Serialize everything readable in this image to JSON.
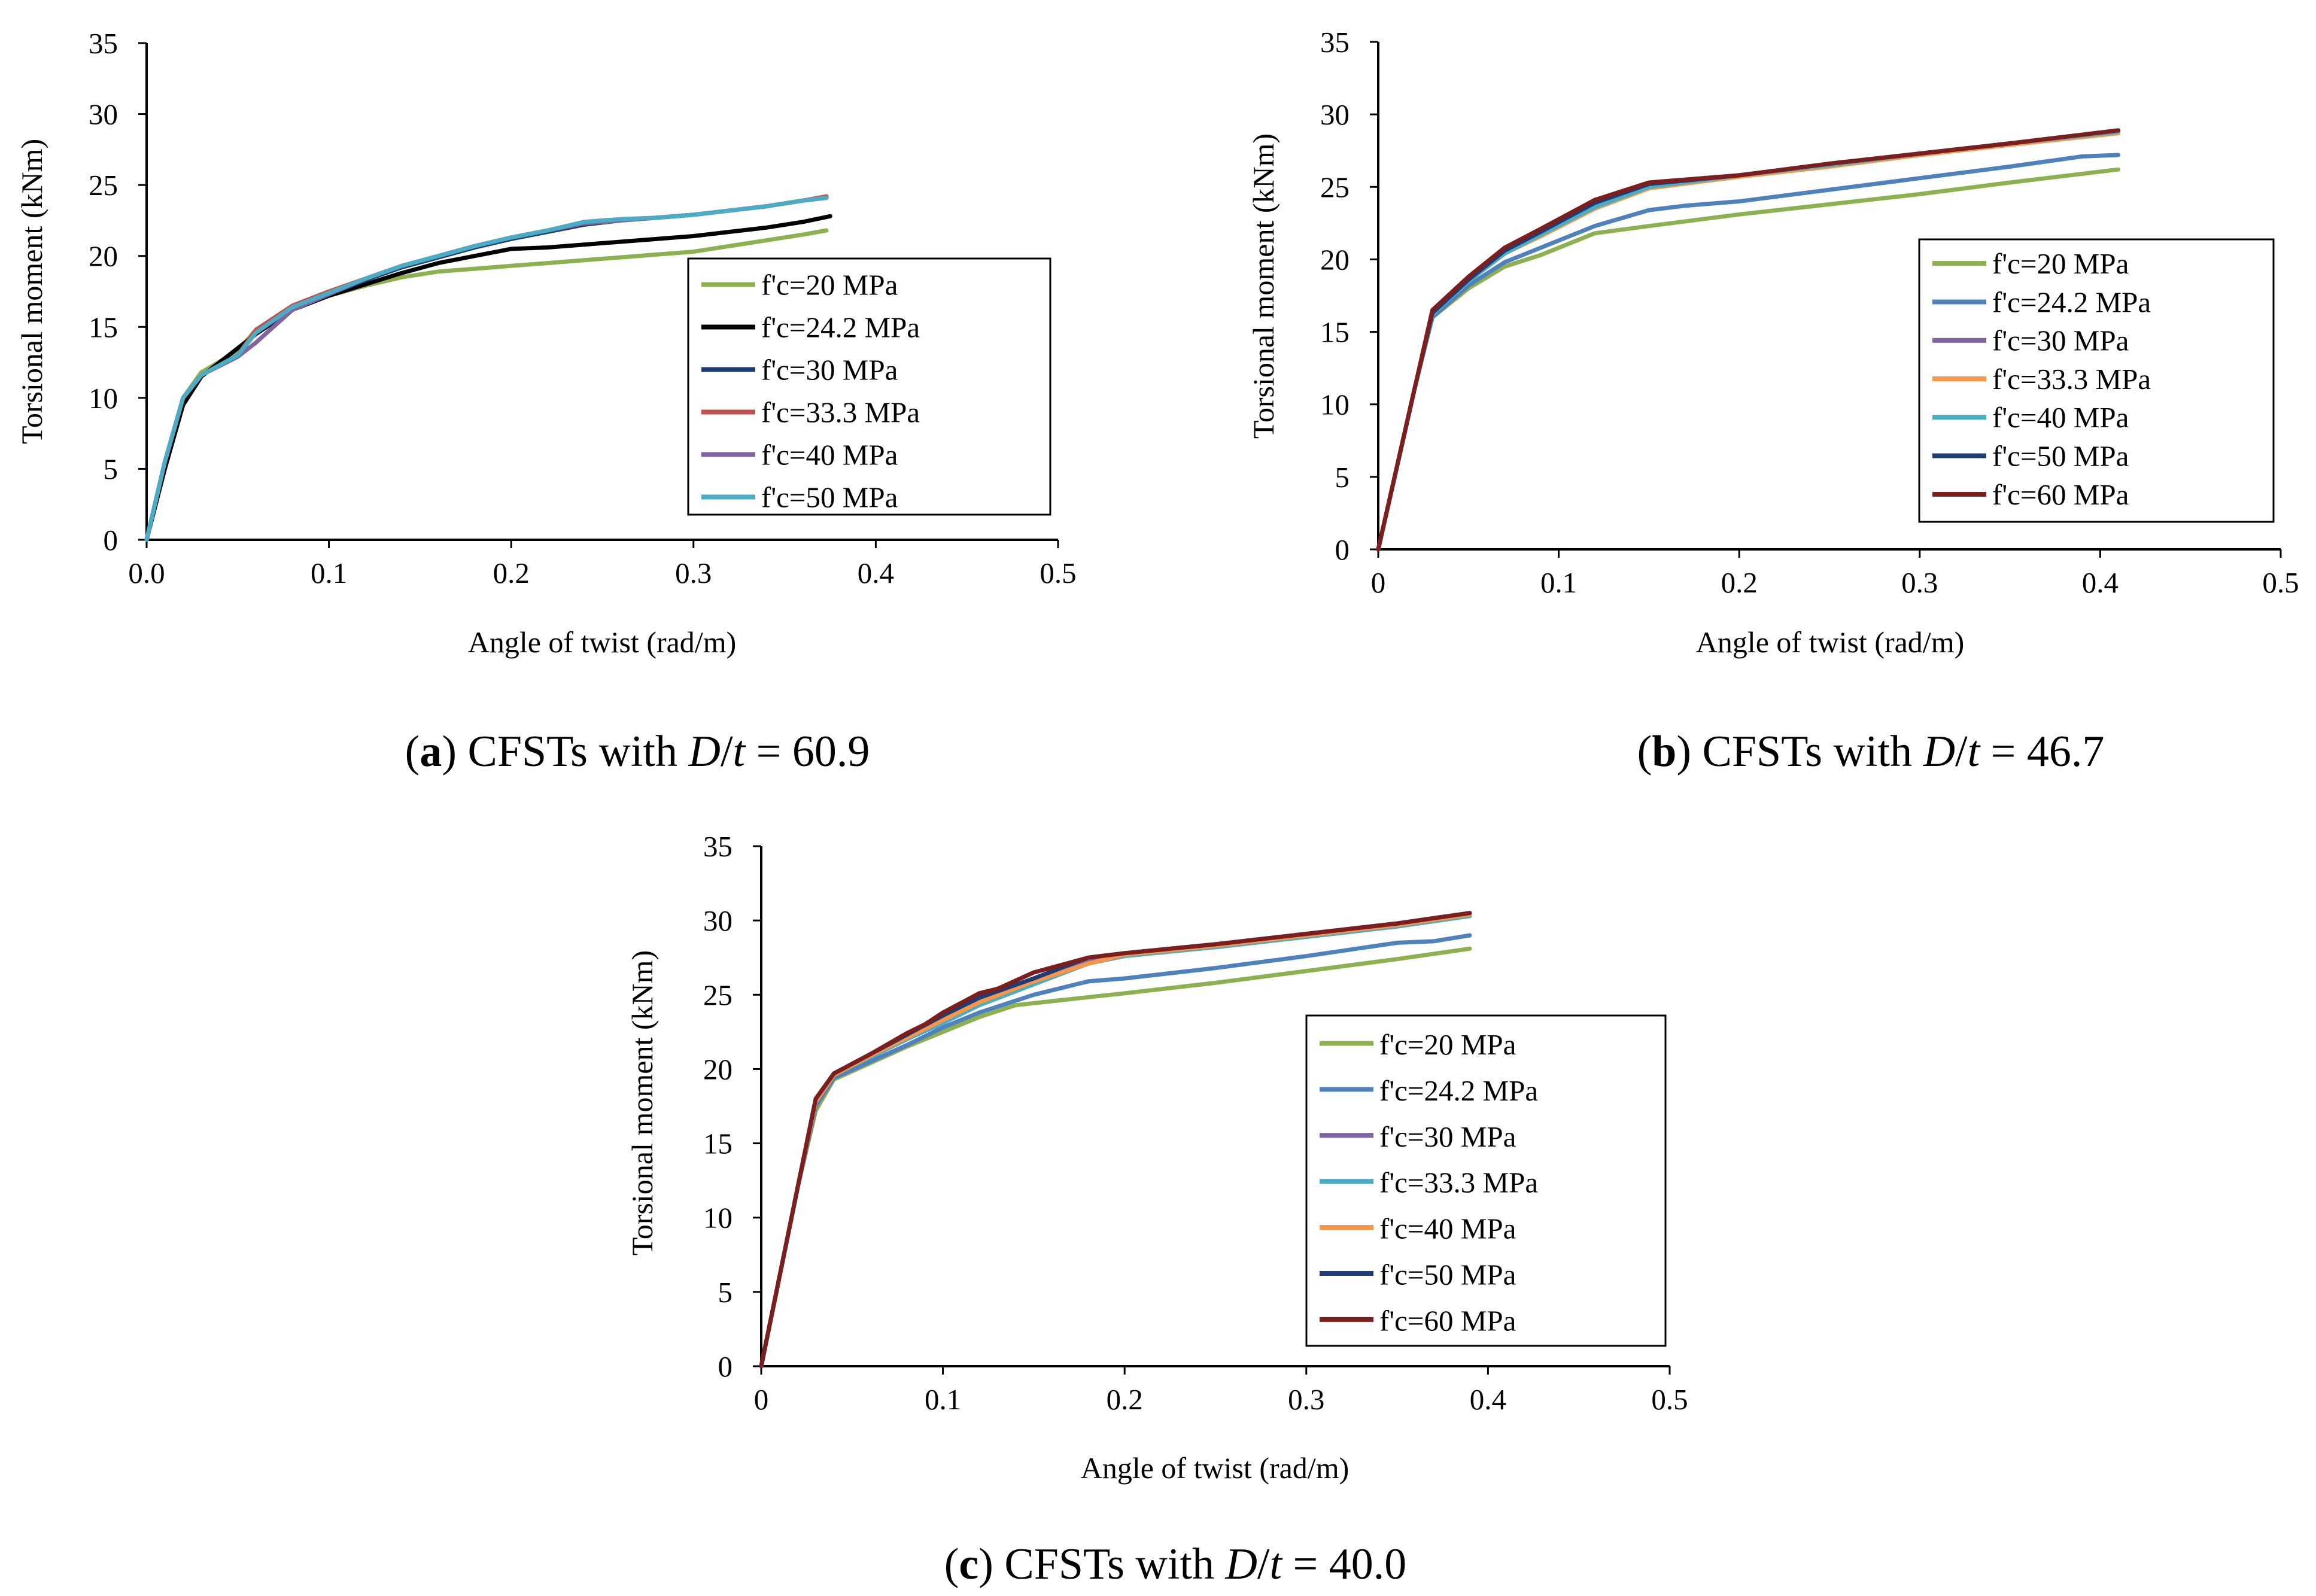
{
  "colors": {
    "green": "#8DB050",
    "black": "#000000",
    "darkblue": "#1F3D73",
    "red": "#C0504D",
    "purple": "#8064A2",
    "cyan": "#4BACC6",
    "blue": "#4F81BD",
    "orange": "#F79646",
    "darkred": "#7B1E1E"
  },
  "chart_data": [
    {
      "type": "line",
      "panel_letter": "a",
      "caption_prefix": "CFSTs with ",
      "caption_D": "D",
      "caption_slash": "/",
      "caption_t": "t",
      "caption_value": " = 60.9",
      "xlabel": "Angle  of twist  (rad/m)",
      "ylabel": "Torsional  moment  (kNm)",
      "xlim": [
        0,
        0.5
      ],
      "ylim": [
        0,
        35
      ],
      "xticks": [
        "0.0",
        "0.1",
        "0.2",
        "0.3",
        "0.4",
        "0.5"
      ],
      "yticks": [
        "0",
        "5",
        "10",
        "15",
        "20",
        "25",
        "30",
        "35"
      ],
      "grid": false,
      "legend_position": "right",
      "series": [
        {
          "name": "f'c=20 MPa",
          "color": "#8DB050",
          "x": [
            0,
            0.01,
            0.02,
            0.03,
            0.05,
            0.06,
            0.08,
            0.1,
            0.12,
            0.14,
            0.16,
            0.18,
            0.2,
            0.22,
            0.24,
            0.26,
            0.28,
            0.3,
            0.32,
            0.34,
            0.36,
            0.373
          ],
          "y": [
            0,
            5.5,
            10,
            11.8,
            13.3,
            14.8,
            16.3,
            17.2,
            17.9,
            18.5,
            18.9,
            19.1,
            19.3,
            19.5,
            19.7,
            19.9,
            20.1,
            20.3,
            20.7,
            21.1,
            21.5,
            21.8
          ]
        },
        {
          "name": "f'c=24.2 MPa",
          "color": "#000000",
          "x": [
            0,
            0.01,
            0.02,
            0.03,
            0.05,
            0.06,
            0.08,
            0.1,
            0.12,
            0.14,
            0.16,
            0.18,
            0.2,
            0.22,
            0.24,
            0.26,
            0.28,
            0.3,
            0.32,
            0.34,
            0.36,
            0.375
          ],
          "y": [
            0,
            5,
            9.5,
            11.5,
            13.5,
            14.5,
            16.2,
            17.2,
            18,
            18.8,
            19.5,
            20,
            20.5,
            20.6,
            20.8,
            21,
            21.2,
            21.4,
            21.7,
            22,
            22.4,
            22.8
          ]
        },
        {
          "name": "f'c=30 MPa",
          "color": "#1F3D73",
          "x": [
            0,
            0.01,
            0.02,
            0.03,
            0.05,
            0.06,
            0.08,
            0.1,
            0.12,
            0.14,
            0.16,
            0.18,
            0.2,
            0.22,
            0.24,
            0.26,
            0.28,
            0.3,
            0.32,
            0.34,
            0.36,
            0.373
          ],
          "y": [
            0,
            5.5,
            10,
            11.6,
            13,
            14.6,
            16.3,
            17.3,
            18.3,
            19.2,
            19.9,
            20.6,
            21.2,
            21.7,
            22.2,
            22.5,
            22.7,
            22.9,
            23.2,
            23.5,
            23.9,
            24.1
          ]
        },
        {
          "name": "f'c=33.3 MPa",
          "color": "#C0504D",
          "x": [
            0,
            0.01,
            0.02,
            0.03,
            0.05,
            0.06,
            0.08,
            0.1,
            0.12,
            0.14,
            0.16,
            0.18,
            0.2,
            0.22,
            0.24,
            0.26,
            0.28,
            0.3,
            0.32,
            0.34,
            0.36,
            0.373
          ],
          "y": [
            0,
            5.5,
            10,
            11.6,
            13,
            14.8,
            16.5,
            17.5,
            18.4,
            19.3,
            20,
            20.7,
            21.3,
            21.8,
            22.3,
            22.5,
            22.7,
            22.9,
            23.2,
            23.5,
            23.9,
            24.2
          ]
        },
        {
          "name": "f'c=40 MPa",
          "color": "#8064A2",
          "x": [
            0,
            0.01,
            0.02,
            0.03,
            0.05,
            0.06,
            0.08,
            0.1,
            0.12,
            0.14,
            0.16,
            0.18,
            0.2,
            0.22,
            0.24,
            0.26,
            0.28,
            0.3,
            0.32,
            0.34,
            0.36,
            0.373
          ],
          "y": [
            0,
            5.5,
            10,
            11.6,
            12.9,
            13.9,
            16.2,
            17.3,
            18.4,
            19.3,
            20,
            20.7,
            21.3,
            21.8,
            22.3,
            22.5,
            22.7,
            22.9,
            23.2,
            23.5,
            23.9,
            24.1
          ]
        },
        {
          "name": "f'c=50 MPa",
          "color": "#4BACC6",
          "x": [
            0,
            0.01,
            0.02,
            0.03,
            0.05,
            0.06,
            0.08,
            0.1,
            0.12,
            0.14,
            0.16,
            0.18,
            0.2,
            0.22,
            0.24,
            0.26,
            0.28,
            0.3,
            0.32,
            0.34,
            0.36,
            0.373
          ],
          "y": [
            0,
            5.5,
            10,
            11.6,
            13,
            14.6,
            16.4,
            17.4,
            18.4,
            19.3,
            20,
            20.7,
            21.3,
            21.8,
            22.4,
            22.6,
            22.7,
            22.9,
            23.2,
            23.5,
            23.9,
            24.1
          ]
        }
      ]
    },
    {
      "type": "line",
      "panel_letter": "b",
      "caption_prefix": "CFSTs with ",
      "caption_D": "D",
      "caption_slash": "/",
      "caption_t": "t",
      "caption_value": " = 46.7",
      "xlabel": "Angle  of twist  (rad/m)",
      "ylabel": "Torsional  moment  (kNm)",
      "xlim": [
        0,
        0.5
      ],
      "ylim": [
        0,
        35
      ],
      "xticks": [
        "0",
        "0.1",
        "0.2",
        "0.3",
        "0.4",
        "0.5"
      ],
      "yticks": [
        "0",
        "5",
        "10",
        "15",
        "20",
        "25",
        "30",
        "35"
      ],
      "grid": false,
      "legend_position": "right",
      "series": [
        {
          "name": "f'c=20 MPa",
          "color": "#8DB050",
          "x": [
            0,
            0.01,
            0.02,
            0.03,
            0.05,
            0.07,
            0.09,
            0.12,
            0.15,
            0.2,
            0.25,
            0.3,
            0.35,
            0.41
          ],
          "y": [
            0,
            5.5,
            11,
            16,
            18,
            19.5,
            20.3,
            21.8,
            22.3,
            23.1,
            23.8,
            24.5,
            25.3,
            26.2
          ]
        },
        {
          "name": "f'c=24.2 MPa",
          "color": "#4F81BD",
          "x": [
            0,
            0.01,
            0.02,
            0.03,
            0.05,
            0.07,
            0.09,
            0.12,
            0.15,
            0.17,
            0.2,
            0.25,
            0.3,
            0.35,
            0.39,
            0.41
          ],
          "y": [
            0,
            5.5,
            11,
            16,
            18.2,
            19.8,
            20.8,
            22.3,
            23.4,
            23.7,
            24,
            24.8,
            25.6,
            26.4,
            27.1,
            27.2
          ]
        },
        {
          "name": "f'c=30 MPa",
          "color": "#8064A2",
          "x": [
            0,
            0.01,
            0.02,
            0.03,
            0.05,
            0.07,
            0.09,
            0.12,
            0.15,
            0.2,
            0.25,
            0.3,
            0.35,
            0.41
          ],
          "y": [
            0,
            5.5,
            11,
            16.2,
            18.5,
            20.4,
            21.7,
            23.6,
            25,
            25.8,
            26.5,
            27.3,
            28,
            28.8
          ]
        },
        {
          "name": "f'c=33.3 MPa",
          "color": "#F79646",
          "x": [
            0,
            0.01,
            0.02,
            0.03,
            0.05,
            0.07,
            0.09,
            0.12,
            0.15,
            0.2,
            0.25,
            0.3,
            0.35,
            0.41
          ],
          "y": [
            0,
            5.5,
            11,
            16.2,
            18.5,
            20.4,
            21.6,
            23.5,
            24.9,
            25.7,
            26.4,
            27.2,
            27.9,
            28.7
          ]
        },
        {
          "name": "f'c=40 MPa",
          "color": "#4BACC6",
          "x": [
            0,
            0.01,
            0.02,
            0.03,
            0.05,
            0.07,
            0.09,
            0.12,
            0.15,
            0.2,
            0.25,
            0.3,
            0.35,
            0.41
          ],
          "y": [
            0,
            5.5,
            11,
            16.2,
            18.5,
            20.4,
            21.7,
            23.6,
            25,
            25.8,
            26.5,
            27.3,
            28,
            28.8
          ]
        },
        {
          "name": "f'c=50 MPa",
          "color": "#1F3D73",
          "x": [
            0,
            0.01,
            0.02,
            0.03,
            0.05,
            0.07,
            0.09,
            0.12,
            0.15,
            0.2,
            0.25,
            0.3,
            0.35,
            0.41
          ],
          "y": [
            0,
            5.5,
            11,
            16.3,
            18.6,
            20.6,
            21.9,
            23.9,
            25.2,
            25.8,
            26.6,
            27.3,
            28,
            28.9
          ]
        },
        {
          "name": "f'c=60 MPa",
          "color": "#7B1E1E",
          "x": [
            0,
            0.01,
            0.02,
            0.03,
            0.05,
            0.07,
            0.09,
            0.12,
            0.15,
            0.2,
            0.25,
            0.3,
            0.35,
            0.41
          ],
          "y": [
            0,
            5.5,
            11,
            16.5,
            18.8,
            20.8,
            22.1,
            24.1,
            25.3,
            25.8,
            26.6,
            27.3,
            28,
            28.9
          ]
        }
      ]
    },
    {
      "type": "line",
      "panel_letter": "c",
      "caption_prefix": "CFSTs with ",
      "caption_D": "D",
      "caption_slash": "/",
      "caption_t": "t",
      "caption_value": " = 40.0",
      "xlabel": "Angle  of twist  (rad/m)",
      "ylabel": "Torsional  moment  (kNm)",
      "xlim": [
        0,
        0.5
      ],
      "ylim": [
        0,
        35
      ],
      "xticks": [
        "0",
        "0.1",
        "0.2",
        "0.3",
        "0.4",
        "0.5"
      ],
      "yticks": [
        "0",
        "5",
        "10",
        "15",
        "20",
        "25",
        "30",
        "35"
      ],
      "grid": false,
      "legend_position": "right",
      "series": [
        {
          "name": "f'c=20 MPa",
          "color": "#8DB050",
          "x": [
            0,
            0.01,
            0.02,
            0.03,
            0.04,
            0.06,
            0.08,
            0.1,
            0.12,
            0.14,
            0.17,
            0.2,
            0.25,
            0.3,
            0.35,
            0.39
          ],
          "y": [
            0,
            6,
            12,
            17.2,
            19.3,
            20.4,
            21.5,
            22.5,
            23.5,
            24.3,
            24.7,
            25.1,
            25.8,
            26.6,
            27.4,
            28.1
          ]
        },
        {
          "name": "f'c=24.2 MPa",
          "color": "#4F81BD",
          "x": [
            0,
            0.01,
            0.02,
            0.03,
            0.04,
            0.06,
            0.08,
            0.1,
            0.12,
            0.15,
            0.18,
            0.2,
            0.25,
            0.3,
            0.35,
            0.37,
            0.39
          ],
          "y": [
            0,
            6,
            12,
            17.5,
            19.4,
            20.5,
            21.6,
            22.8,
            23.8,
            25,
            25.9,
            26.1,
            26.8,
            27.6,
            28.5,
            28.6,
            29
          ]
        },
        {
          "name": "f'c=30 MPa",
          "color": "#8064A2",
          "x": [
            0,
            0.01,
            0.02,
            0.03,
            0.04,
            0.06,
            0.08,
            0.1,
            0.12,
            0.15,
            0.18,
            0.2,
            0.25,
            0.3,
            0.35,
            0.39
          ],
          "y": [
            0,
            6,
            12,
            17.8,
            19.6,
            20.8,
            22,
            23.2,
            24.4,
            25.8,
            27.2,
            27.7,
            28.2,
            28.9,
            29.6,
            30.3
          ]
        },
        {
          "name": "f'c=33.3 MPa",
          "color": "#4BACC6",
          "x": [
            0,
            0.01,
            0.02,
            0.03,
            0.04,
            0.06,
            0.08,
            0.1,
            0.12,
            0.15,
            0.18,
            0.2,
            0.25,
            0.3,
            0.35,
            0.39
          ],
          "y": [
            0,
            6,
            12,
            17.8,
            19.6,
            20.8,
            22,
            23.1,
            24.3,
            25.7,
            27.1,
            27.6,
            28.2,
            28.9,
            29.6,
            30.3
          ]
        },
        {
          "name": "f'c=40 MPa",
          "color": "#F79646",
          "x": [
            0,
            0.01,
            0.02,
            0.03,
            0.04,
            0.06,
            0.08,
            0.1,
            0.12,
            0.15,
            0.18,
            0.2,
            0.25,
            0.3,
            0.35,
            0.39
          ],
          "y": [
            0,
            6,
            12,
            17.8,
            19.6,
            20.9,
            22.1,
            23.3,
            24.5,
            25.9,
            27.1,
            27.7,
            28.3,
            29,
            29.7,
            30.4
          ]
        },
        {
          "name": "f'c=50 MPa",
          "color": "#1F3D73",
          "x": [
            0,
            0.01,
            0.02,
            0.03,
            0.04,
            0.06,
            0.08,
            0.1,
            0.12,
            0.15,
            0.18,
            0.2,
            0.25,
            0.3,
            0.35,
            0.39
          ],
          "y": [
            0,
            6,
            12,
            18,
            19.7,
            21,
            22.3,
            23.6,
            24.8,
            26.1,
            27.5,
            27.8,
            28.4,
            29.1,
            29.8,
            30.5
          ]
        },
        {
          "name": "f'c=60 MPa",
          "color": "#7B1E1E",
          "x": [
            0,
            0.01,
            0.02,
            0.03,
            0.04,
            0.06,
            0.08,
            0.09,
            0.1,
            0.12,
            0.13,
            0.15,
            0.18,
            0.2,
            0.25,
            0.3,
            0.35,
            0.39
          ],
          "y": [
            0,
            6,
            12,
            18,
            19.7,
            21,
            22.4,
            23,
            23.8,
            25.1,
            25.4,
            26.5,
            27.5,
            27.8,
            28.4,
            29.1,
            29.8,
            30.5
          ]
        }
      ]
    }
  ]
}
